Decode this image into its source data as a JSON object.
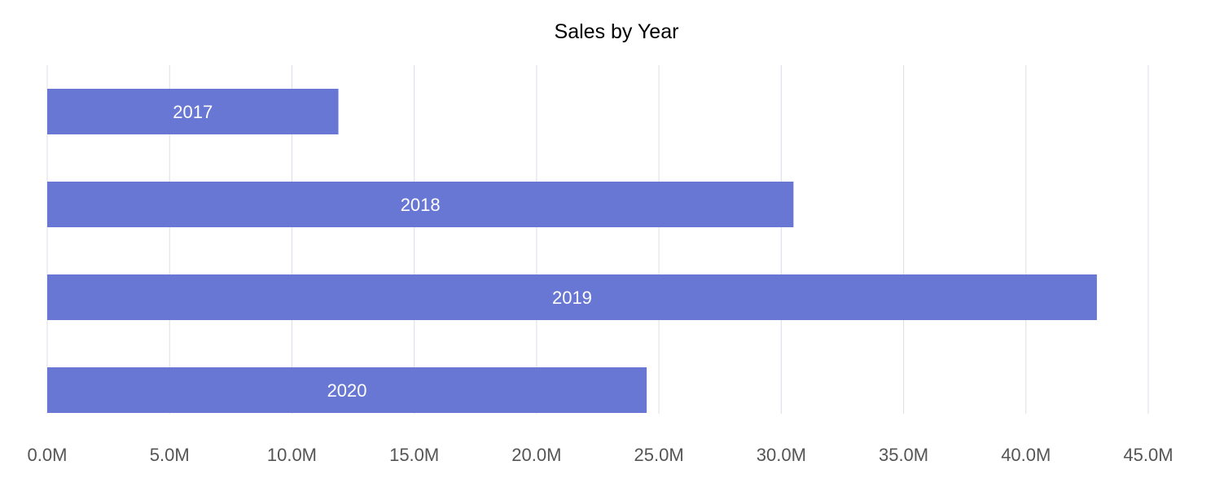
{
  "chart_data": {
    "type": "bar",
    "orientation": "horizontal",
    "title": "Sales by Year",
    "xlabel": "",
    "ylabel": "",
    "categories": [
      "2017",
      "2018",
      "2019",
      "2020"
    ],
    "values": [
      11900000,
      30500000,
      42900000,
      24500000
    ],
    "xlim": [
      0,
      45000000
    ],
    "x_ticks": [
      0,
      5000000,
      10000000,
      15000000,
      20000000,
      25000000,
      30000000,
      35000000,
      40000000,
      45000000
    ],
    "x_tick_labels": [
      "0.0M",
      "5.0M",
      "10.0M",
      "15.0M",
      "20.0M",
      "25.0M",
      "30.0M",
      "35.0M",
      "40.0M",
      "45.0M"
    ],
    "grid": "vertical",
    "legend": "none",
    "colors": {
      "bar": "#6877d3",
      "grid": "#dcdce8",
      "tick_text": "#555555",
      "title_text": "#000000",
      "bar_label_text": "#ffffff"
    }
  }
}
